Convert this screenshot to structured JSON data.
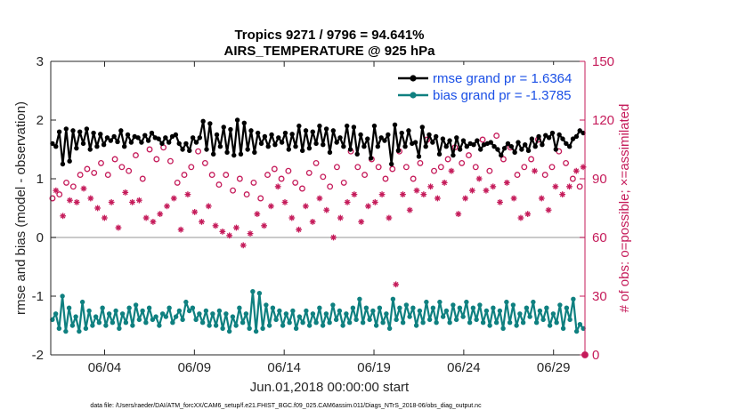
{
  "chart_data": {
    "type": "line",
    "title_line1": "Tropics 9271 / 9796 = 94.641%",
    "title_line2": "AIRS_TEMPERATURE @ 925 hPa",
    "xlabel": "Jun.01,2018 00:00:00 start",
    "ylabel": "rmse and bias (model - observation)",
    "ylabel_right": "# of obs: o=possible; ×=assimilated",
    "footnote": "data file: /Users/raeder/DAI/ATM_forcXX/CAM6_setup/f.e21.FHIST_BGC.f09_025.CAM6assim.011/Diags_NTrS_2018-06/obs_diag_output.nc",
    "x_tick_labels": [
      "06/04",
      "06/09",
      "06/14",
      "06/19",
      "06/24",
      "06/29"
    ],
    "x_tick_days": [
      4,
      9,
      14,
      19,
      24,
      29
    ],
    "xlim": [
      1,
      30.75
    ],
    "ylim": [
      -2,
      3
    ],
    "y_ticks": [
      -2,
      -1,
      0,
      1,
      2,
      3
    ],
    "y_tick_labels": [
      "-2",
      "-1",
      "0",
      "1",
      "2",
      "3"
    ],
    "ylim_right": [
      0,
      150
    ],
    "y_ticks_right": [
      0,
      30,
      60,
      90,
      120,
      150
    ],
    "y_tick_labels_right": [
      "0",
      "30",
      "60",
      "90",
      "120",
      "150"
    ],
    "zero_line": 0,
    "series": [
      {
        "name": "rmse",
        "legend": "rmse grand pr = 1.6364",
        "color": "#000000",
        "values": [
          1.6,
          1.55,
          1.8,
          1.25,
          1.85,
          1.3,
          1.82,
          1.52,
          1.8,
          1.6,
          1.85,
          1.5,
          1.78,
          1.55,
          1.76,
          1.58,
          1.7,
          1.65,
          1.72,
          1.63,
          1.82,
          1.55,
          1.75,
          1.62,
          1.72,
          1.7,
          1.62,
          1.74,
          1.65,
          1.78,
          1.7,
          1.68,
          1.6,
          1.7,
          1.62,
          1.72,
          1.75,
          1.6,
          1.5,
          1.6,
          1.48,
          1.7,
          1.62,
          1.7,
          1.98,
          1.5,
          1.94,
          1.42,
          1.75,
          1.55,
          1.88,
          1.45,
          1.84,
          1.4,
          2.0,
          1.42,
          1.95,
          1.5,
          1.82,
          1.45,
          1.78,
          1.6,
          1.72,
          1.55,
          1.75,
          1.58,
          1.7,
          1.62,
          1.78,
          1.5,
          1.76,
          1.55,
          1.9,
          1.48,
          1.82,
          1.52,
          1.8,
          1.6,
          1.9,
          1.58,
          1.85,
          1.45,
          1.82,
          1.62,
          1.7,
          1.55,
          1.9,
          1.5,
          1.88,
          1.42,
          1.75,
          1.55,
          1.68,
          1.35,
          1.9,
          1.55,
          1.7,
          1.65,
          1.75,
          1.25,
          1.92,
          1.48,
          1.78,
          1.55,
          1.82,
          1.6,
          1.62,
          1.38,
          1.88,
          1.55,
          1.75,
          1.62,
          1.72,
          1.42,
          1.68,
          1.55,
          1.65,
          1.4,
          1.7,
          1.5,
          1.65,
          1.55,
          1.6,
          1.58,
          1.65,
          1.5,
          1.58,
          1.6,
          1.62,
          1.55,
          1.5,
          1.4,
          1.52,
          1.6,
          1.55,
          1.45,
          1.62,
          1.5,
          1.58,
          1.48,
          1.68,
          1.55,
          1.72,
          1.58,
          1.74,
          1.7,
          1.78,
          1.5,
          1.75,
          1.68,
          1.6,
          1.55,
          1.68,
          1.72,
          1.82,
          1.78
        ]
      },
      {
        "name": "bias",
        "legend": "bias grand pr = -1.3785",
        "color": "#0f8080",
        "values": [
          -1.4,
          -1.3,
          -1.55,
          -1.0,
          -1.6,
          -1.2,
          -1.5,
          -1.35,
          -1.6,
          -1.1,
          -1.55,
          -1.25,
          -1.5,
          -1.35,
          -1.45,
          -1.2,
          -1.5,
          -1.3,
          -1.45,
          -1.25,
          -1.55,
          -1.3,
          -1.45,
          -1.2,
          -1.5,
          -1.15,
          -1.4,
          -1.25,
          -1.45,
          -1.2,
          -1.4,
          -1.35,
          -1.5,
          -1.3,
          -1.35,
          -1.2,
          -1.45,
          -1.35,
          -1.25,
          -1.4,
          -1.1,
          -1.25,
          -1.2,
          -1.4,
          -1.3,
          -1.45,
          -1.25,
          -1.5,
          -1.3,
          -1.5,
          -1.25,
          -1.55,
          -1.3,
          -1.6,
          -1.35,
          -1.5,
          -1.2,
          -1.45,
          -1.3,
          -1.55,
          -0.92,
          -1.6,
          -0.95,
          -1.55,
          -1.15,
          -1.5,
          -1.2,
          -1.4,
          -1.25,
          -1.5,
          -1.3,
          -1.45,
          -1.25,
          -1.55,
          -1.35,
          -1.45,
          -1.25,
          -1.5,
          -1.3,
          -1.45,
          -1.2,
          -1.5,
          -1.3,
          -1.45,
          -1.15,
          -1.4,
          -1.25,
          -1.5,
          -1.3,
          -1.45,
          -1.2,
          -1.4,
          -1.05,
          -1.45,
          -1.2,
          -1.4,
          -1.25,
          -1.5,
          -1.2,
          -1.45,
          -1.3,
          -1.55,
          -1.05,
          -1.4,
          -1.2,
          -1.45,
          -1.15,
          -1.35,
          -1.2,
          -1.5,
          -1.25,
          -1.45,
          -1.1,
          -1.4,
          -1.2,
          -1.45,
          -1.1,
          -1.35,
          -1.25,
          -1.45,
          -1.15,
          -1.4,
          -1.2,
          -1.35,
          -1.1,
          -1.45,
          -1.2,
          -1.4,
          -1.15,
          -1.45,
          -1.25,
          -1.5,
          -1.2,
          -1.45,
          -1.25,
          -1.55,
          -1.1,
          -1.45,
          -1.15,
          -1.5,
          -1.3,
          -1.45,
          -1.2,
          -1.35,
          -1.1,
          -1.45,
          -1.25,
          -1.4,
          -1.2,
          -1.5,
          -1.3,
          -1.45,
          -1.15,
          -1.55,
          -1.2,
          -1.4,
          -1.05,
          -1.6,
          -1.48,
          -1.55
        ]
      }
    ],
    "obs_possible": [
      80,
      84,
      82,
      71,
      88,
      79,
      86,
      78,
      92,
      85,
      95,
      80,
      93,
      75,
      98,
      70,
      92,
      78,
      100,
      65,
      96,
      83,
      94,
      78,
      102,
      79,
      90,
      70,
      105,
      68,
      100,
      72,
      106,
      76,
      99,
      80,
      88,
      64,
      92,
      82,
      96,
      73,
      104,
      68,
      98,
      76,
      92,
      66,
      87,
      63,
      92,
      61,
      84,
      65,
      90,
      56,
      82,
      62,
      88,
      72,
      80,
      66,
      92,
      76,
      95,
      86,
      90,
      78,
      94,
      70,
      88,
      64,
      85,
      76,
      93,
      68,
      98,
      80,
      91,
      74,
      86,
      60,
      96,
      70,
      88,
      78,
      104,
      82,
      96,
      68,
      92,
      76,
      100,
      78,
      96,
      82,
      90,
      70,
      95,
      36,
      104,
      82,
      96,
      74,
      90,
      84,
      98,
      82,
      110,
      86,
      94,
      80,
      96,
      88,
      100,
      94,
      106,
      72,
      98,
      80,
      102,
      84,
      96,
      90,
      110,
      84,
      94,
      86,
      112,
      78,
      100,
      88,
      106,
      80,
      92,
      70,
      96,
      72,
      100,
      94,
      110,
      80,
      92,
      74,
      96,
      86,
      104,
      82,
      98,
      86,
      90,
      94,
      86,
      96
    ]
  }
}
